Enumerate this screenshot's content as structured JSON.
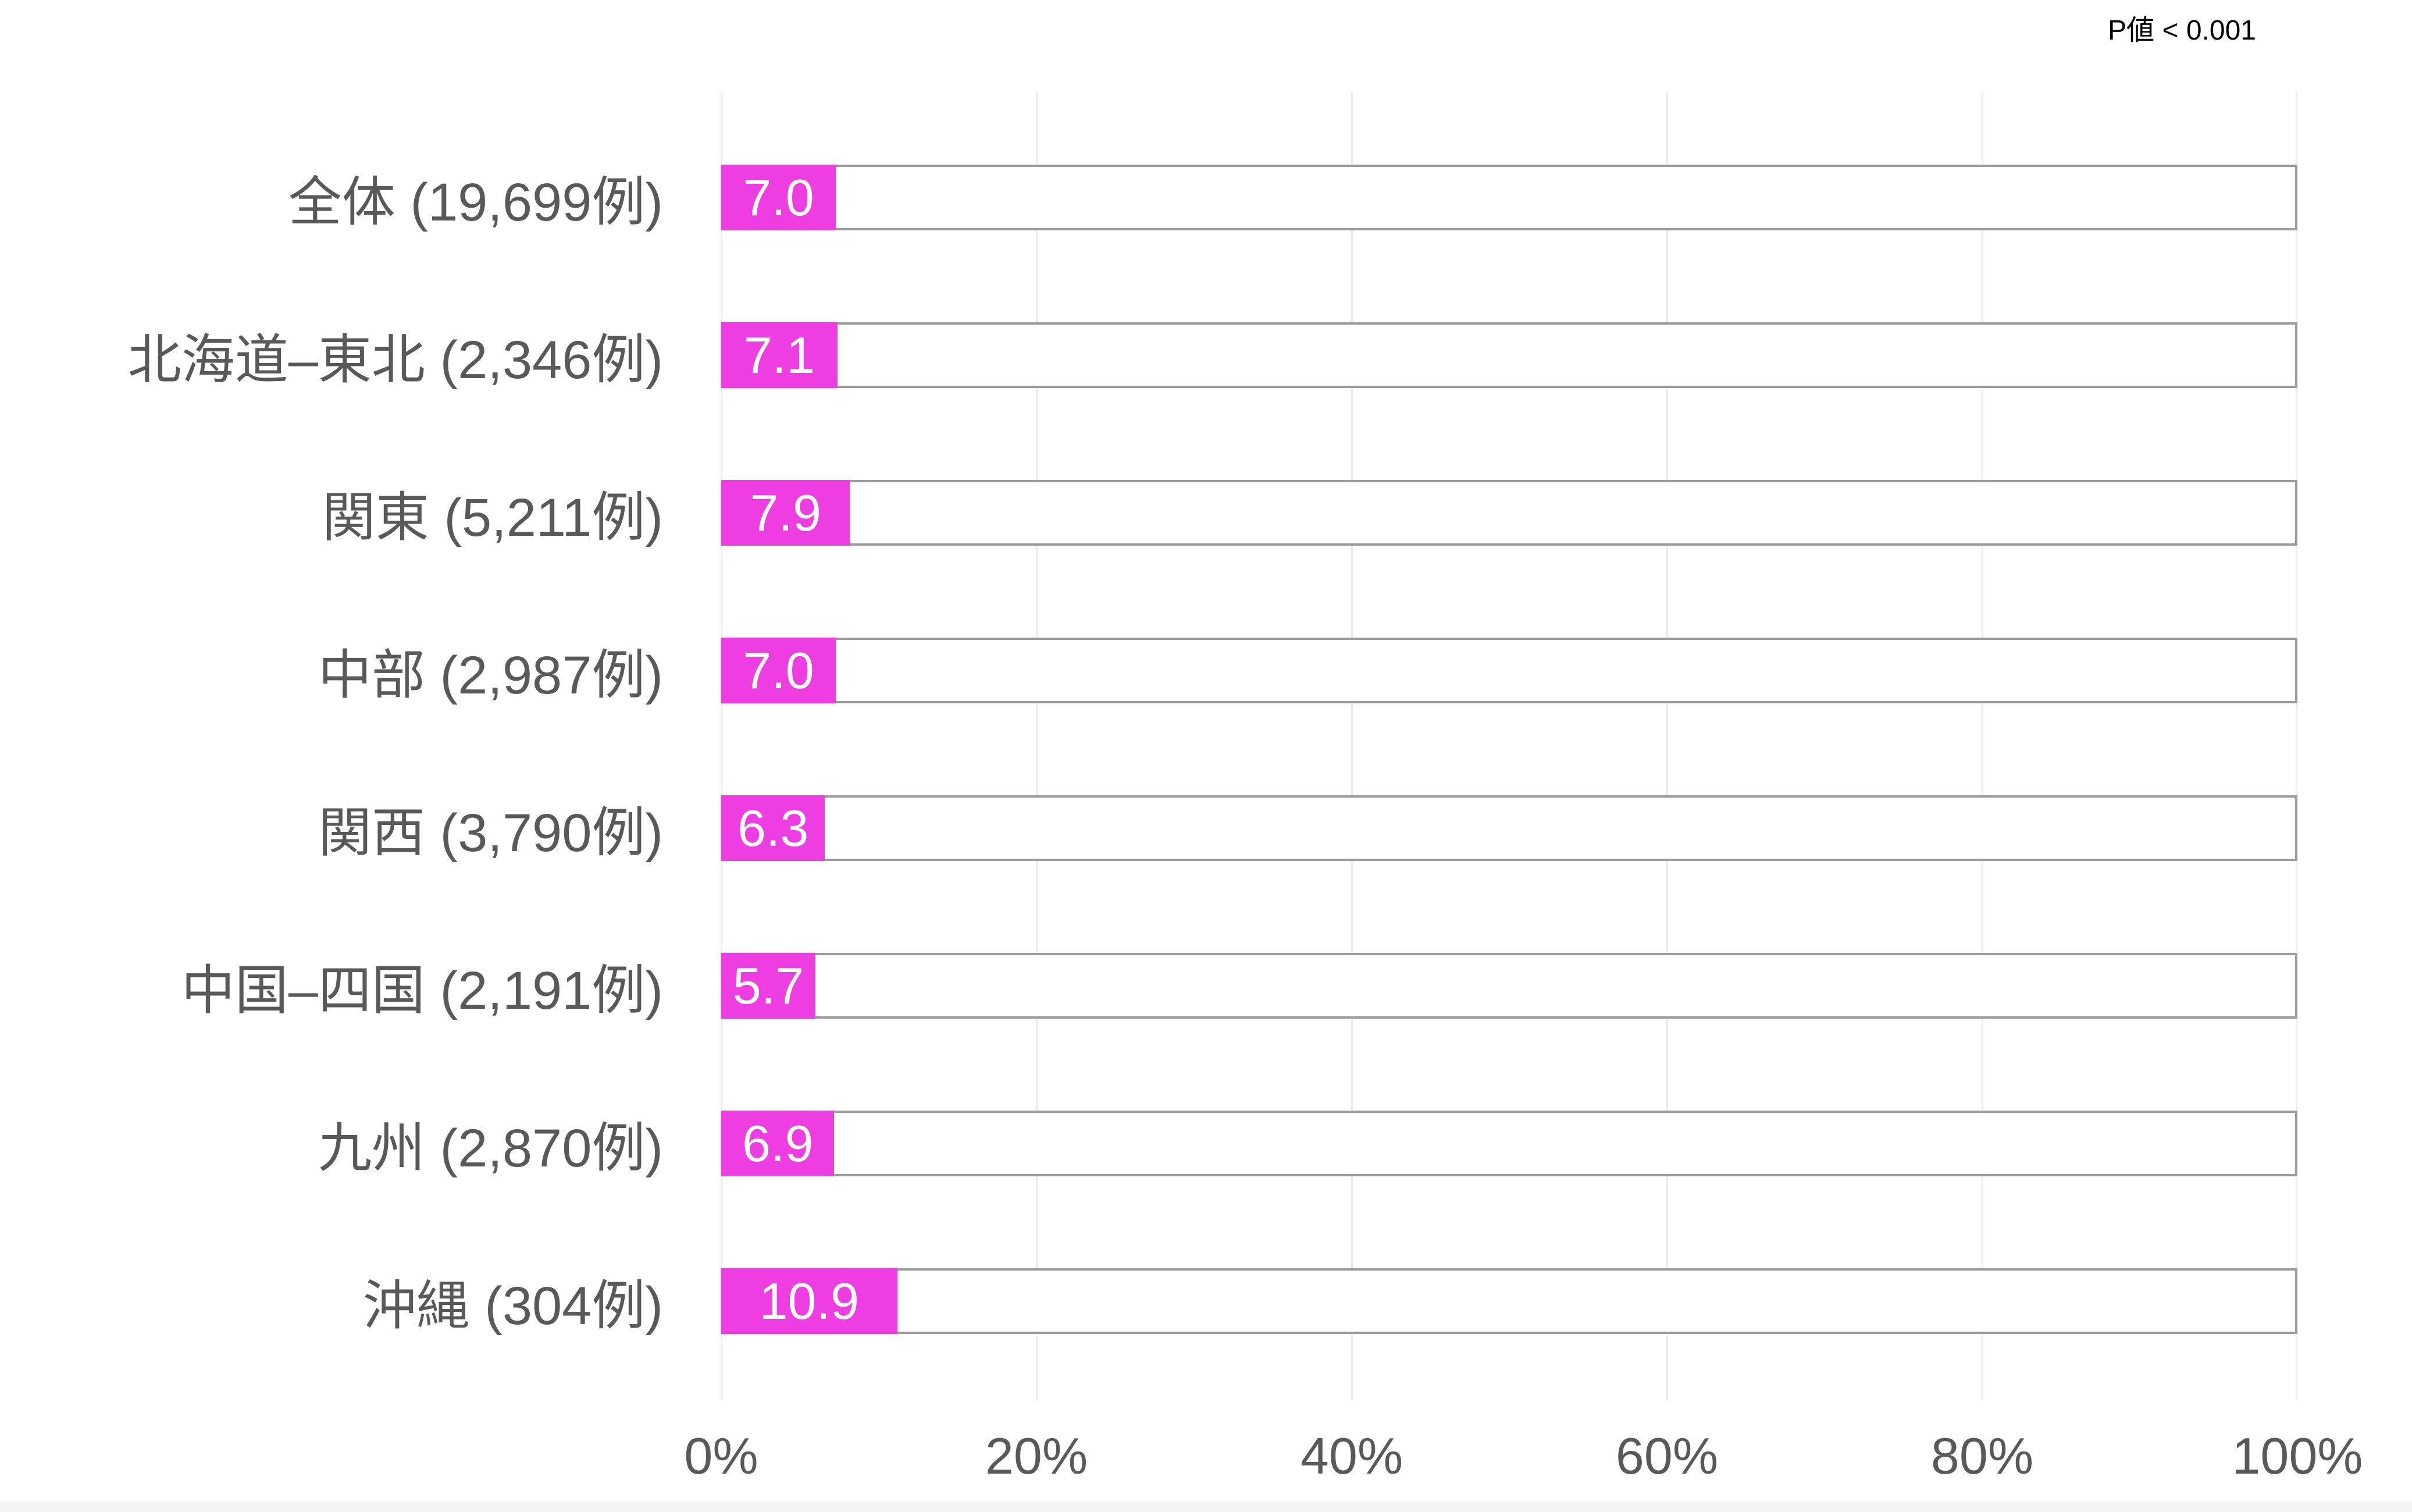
{
  "chart_data": {
    "type": "bar",
    "orientation": "horizontal",
    "title": "",
    "xlabel": "",
    "ylabel": "",
    "xlim": [
      0,
      100
    ],
    "grid": true,
    "categories": [
      "全体 (19,699例)",
      "北海道–東北 (2,346例)",
      "関東 (5,211例)",
      "中部 (2,987例)",
      "関西 (3,790例)",
      "中国–四国 (2,191例)",
      "九州 (2,870例)",
      "沖縄 (304例)"
    ],
    "values": [
      7.0,
      7.1,
      7.9,
      7.0,
      6.3,
      5.7,
      6.9,
      10.9
    ],
    "value_labels": [
      "7.0",
      "7.1",
      "7.9",
      "7.0",
      "6.3",
      "5.7",
      "6.9",
      "10.9"
    ],
    "x_ticks": [
      "0%",
      "20%",
      "40%",
      "60%",
      "80%",
      "100%"
    ],
    "annotation": "P値 < 0.001",
    "colors": {
      "bar_fill": "#ee3ee2",
      "bar_outline": "#9c9c9c",
      "gridline": "#ececec",
      "text": "#595959",
      "value_text": "#ffffff",
      "annotation_text": "#000000"
    }
  }
}
